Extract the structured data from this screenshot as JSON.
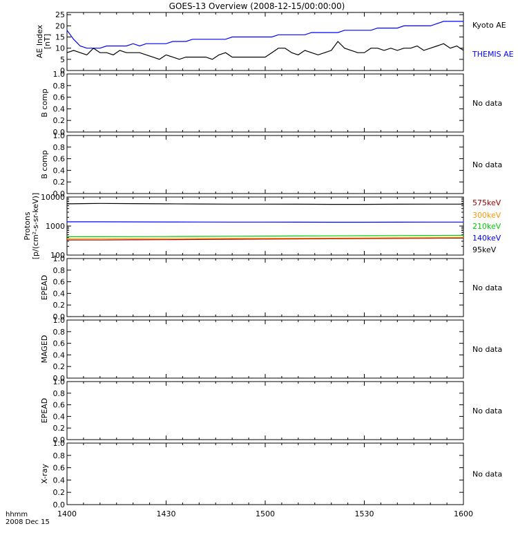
{
  "title": "GOES-13 Overview (2008-12-15/00:00:00)",
  "time_axis": {
    "label_line1": "hhmm",
    "label_line2": "2008 Dec 15",
    "ticks": [
      "1400",
      "1430",
      "1500",
      "1530",
      "1600"
    ]
  },
  "colors": {
    "axes": "#000000",
    "kyoto": "#000000",
    "themis": "#0000ff",
    "p575": "#a00000",
    "p300": "#ff9900",
    "p210": "#00cc00",
    "p140": "#0000ff",
    "p95": "#000000"
  },
  "chart_data": [
    {
      "type": "line",
      "ylabel_line1": "AE Index",
      "ylabel_line2": "[nT]",
      "ylim": [
        0,
        26
      ],
      "ytick_labels": [
        "0",
        "5",
        "10",
        "15",
        "20",
        "25"
      ],
      "x": [
        "14:00",
        "14:02",
        "14:04",
        "14:06",
        "14:08",
        "14:10",
        "14:12",
        "14:14",
        "14:16",
        "14:18",
        "14:20",
        "14:22",
        "14:24",
        "14:26",
        "14:28",
        "14:30",
        "14:32",
        "14:34",
        "14:36",
        "14:38",
        "14:40",
        "14:42",
        "14:44",
        "14:46",
        "14:48",
        "14:50",
        "14:52",
        "14:54",
        "14:56",
        "14:58",
        "15:00",
        "15:02",
        "15:04",
        "15:06",
        "15:08",
        "15:10",
        "15:12",
        "15:14",
        "15:16",
        "15:18",
        "15:20",
        "15:22",
        "15:24",
        "15:26",
        "15:28",
        "15:30",
        "15:32",
        "15:34",
        "15:36",
        "15:38",
        "15:40",
        "15:42",
        "15:44",
        "15:46",
        "15:48",
        "15:50",
        "15:52",
        "15:54",
        "15:56",
        "15:58",
        "16:00"
      ],
      "series": [
        {
          "name": "Kyoto AE",
          "color_key": "kyoto",
          "values": [
            8,
            9,
            8,
            7,
            10,
            8,
            8,
            7,
            9,
            8,
            8,
            8,
            7,
            6,
            5,
            7,
            6,
            5,
            6,
            6,
            6,
            6,
            5,
            7,
            8,
            6,
            6,
            6,
            6,
            6,
            6,
            8,
            10,
            10,
            8,
            7,
            9,
            8,
            7,
            8,
            9,
            13,
            10,
            9,
            8,
            8,
            10,
            10,
            9,
            10,
            9,
            10,
            10,
            11,
            9,
            10,
            11,
            12,
            10,
            11,
            9
          ]
        },
        {
          "name": "THEMIS AE",
          "color_key": "themis",
          "values": [
            18,
            14,
            11,
            10,
            10,
            10,
            11,
            11,
            11,
            11,
            12,
            11,
            12,
            12,
            12,
            12,
            13,
            13,
            13,
            14,
            14,
            14,
            14,
            14,
            14,
            15,
            15,
            15,
            15,
            15,
            15,
            15,
            16,
            16,
            16,
            16,
            16,
            17,
            17,
            17,
            17,
            17,
            18,
            18,
            18,
            18,
            18,
            19,
            19,
            19,
            19,
            20,
            20,
            20,
            20,
            20,
            21,
            22,
            22,
            22,
            22
          ]
        }
      ],
      "legend": [
        "Kyoto AE",
        "THEMIS AE"
      ]
    },
    {
      "type": "line",
      "ylabel": "B comp",
      "ylim": [
        0,
        1
      ],
      "ytick_labels": [
        "0.0",
        "0.2",
        "0.4",
        "0.6",
        "0.8",
        "1.0"
      ],
      "note": "No data"
    },
    {
      "type": "line",
      "ylabel": "B comp",
      "ylim": [
        0,
        1
      ],
      "ytick_labels": [
        "0.0",
        "0.2",
        "0.4",
        "0.6",
        "0.8",
        "1.0"
      ],
      "note": "No data"
    },
    {
      "type": "line",
      "ylabel_line1": "Protons",
      "ylabel_line2": "[p/(cm²-s-sr-keV)]",
      "yscale": "log",
      "ylim": [
        100,
        10000
      ],
      "ytick_labels": [
        "100",
        "1000",
        "10000"
      ],
      "x": [
        "14:00",
        "14:10",
        "14:20",
        "14:30",
        "14:40",
        "14:50",
        "15:00",
        "15:10",
        "15:20",
        "15:30",
        "15:40",
        "15:50",
        "16:00"
      ],
      "series": [
        {
          "name": "575keV",
          "color_key": "p575",
          "values": [
            330,
            330,
            335,
            340,
            345,
            350,
            355,
            360,
            365,
            370,
            375,
            380,
            385
          ]
        },
        {
          "name": "300keV",
          "color_key": "p300",
          "values": [
            360,
            362,
            365,
            370,
            372,
            375,
            378,
            380,
            385,
            390,
            395,
            400,
            410
          ]
        },
        {
          "name": "210keV",
          "color_key": "p210",
          "values": [
            430,
            430,
            432,
            435,
            440,
            445,
            450,
            455,
            460,
            465,
            470,
            475,
            480
          ]
        },
        {
          "name": "140keV",
          "color_key": "p140",
          "values": [
            1400,
            1400,
            1390,
            1380,
            1375,
            1370,
            1365,
            1360,
            1355,
            1355,
            1360,
            1365,
            1370
          ]
        },
        {
          "name": "95keV",
          "color_key": "p95",
          "values": [
            5800,
            6000,
            5900,
            5800,
            5750,
            5700,
            5700,
            5650,
            5600,
            5600,
            5650,
            5700,
            5700
          ]
        }
      ],
      "legend": [
        "575keV",
        "300keV",
        "210keV",
        "140keV",
        "95keV"
      ]
    },
    {
      "type": "line",
      "ylabel": "EPEAD",
      "ylim": [
        0,
        1
      ],
      "ytick_labels": [
        "0.0",
        "0.2",
        "0.4",
        "0.6",
        "0.8",
        "1.0"
      ],
      "note": "No data"
    },
    {
      "type": "line",
      "ylabel": "MAGED",
      "ylim": [
        0,
        1
      ],
      "ytick_labels": [
        "0.0",
        "0.2",
        "0.4",
        "0.6",
        "0.8",
        "1.0"
      ],
      "note": "No data"
    },
    {
      "type": "line",
      "ylabel": "EPEAD",
      "ylim": [
        0,
        1
      ],
      "ytick_labels": [
        "0.0",
        "0.2",
        "0.4",
        "0.6",
        "0.8",
        "1.0"
      ],
      "note": "No data"
    },
    {
      "type": "line",
      "ylabel": "X-ray",
      "ylim": [
        0,
        1
      ],
      "ytick_labels": [
        "0.0",
        "0.2",
        "0.4",
        "0.6",
        "0.8",
        "1.0"
      ],
      "note": "No data"
    }
  ]
}
